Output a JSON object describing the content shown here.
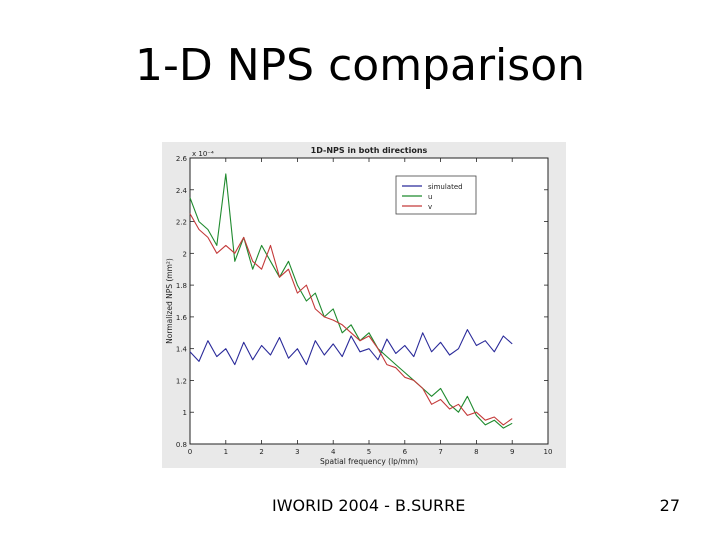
{
  "slide": {
    "title": "1-D NPS comparison",
    "footer": "IWORID 2004 - B.SURRE",
    "page_number": "27"
  },
  "chart_data": {
    "type": "line",
    "title": "1D-NPS in both directions",
    "xlabel": "Spatial frequency (lp/mm)",
    "ylabel": "Normalized NPS (mm²)",
    "y_multiplier": "x 10⁻⁴",
    "xlim": [
      0,
      10
    ],
    "ylim": [
      0.8,
      2.6
    ],
    "xticks": [
      0,
      1,
      2,
      3,
      4,
      5,
      6,
      7,
      8,
      9,
      10
    ],
    "yticks": [
      0.8,
      1,
      1.2,
      1.4,
      1.6,
      1.8,
      2,
      2.2,
      2.4,
      2.6
    ],
    "grid": false,
    "legend": "top-right",
    "x": [
      0,
      0.25,
      0.5,
      0.75,
      1,
      1.25,
      1.5,
      1.75,
      2,
      2.25,
      2.5,
      2.75,
      3,
      3.25,
      3.5,
      3.75,
      4,
      4.25,
      4.5,
      4.75,
      5,
      5.25,
      5.5,
      5.75,
      6,
      6.25,
      6.5,
      6.75,
      7,
      7.25,
      7.5,
      7.75,
      8,
      8.25,
      8.5,
      8.75,
      9
    ],
    "series": [
      {
        "name": "simulated",
        "color": "#2b2b9a",
        "values": [
          1.38,
          1.32,
          1.45,
          1.35,
          1.4,
          1.3,
          1.44,
          1.33,
          1.42,
          1.36,
          1.47,
          1.34,
          1.4,
          1.3,
          1.45,
          1.36,
          1.43,
          1.35,
          1.48,
          1.38,
          1.4,
          1.33,
          1.46,
          1.37,
          1.42,
          1.35,
          1.5,
          1.38,
          1.44,
          1.36,
          1.4,
          1.52,
          1.42,
          1.45,
          1.38,
          1.48,
          1.43
        ]
      },
      {
        "name": "u",
        "color": "#1f8a2e",
        "values": [
          2.35,
          2.2,
          2.15,
          2.05,
          2.5,
          1.95,
          2.1,
          1.9,
          2.05,
          1.95,
          1.85,
          1.95,
          1.8,
          1.7,
          1.75,
          1.6,
          1.65,
          1.5,
          1.55,
          1.45,
          1.5,
          1.4,
          1.35,
          1.3,
          1.25,
          1.2,
          1.15,
          1.1,
          1.15,
          1.05,
          1.0,
          1.1,
          0.98,
          0.92,
          0.95,
          0.9,
          0.93
        ]
      },
      {
        "name": "v",
        "color": "#c43a3a",
        "values": [
          2.25,
          2.15,
          2.1,
          2.0,
          2.05,
          2.0,
          2.1,
          1.95,
          1.9,
          2.05,
          1.85,
          1.9,
          1.75,
          1.8,
          1.65,
          1.6,
          1.58,
          1.55,
          1.5,
          1.45,
          1.48,
          1.4,
          1.3,
          1.28,
          1.22,
          1.2,
          1.15,
          1.05,
          1.08,
          1.02,
          1.05,
          0.98,
          1.0,
          0.95,
          0.97,
          0.92,
          0.96
        ]
      }
    ]
  }
}
